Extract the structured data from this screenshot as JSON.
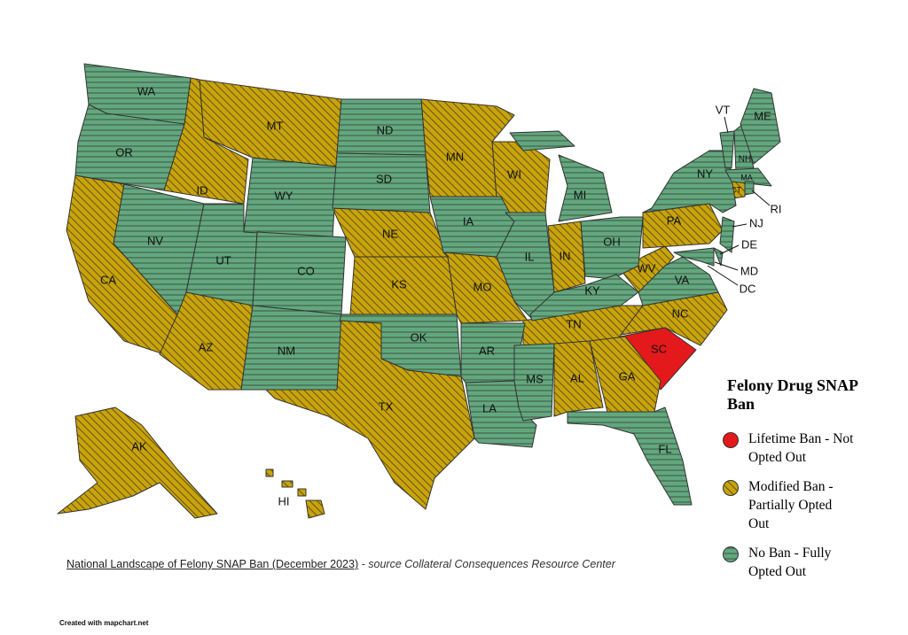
{
  "legend": {
    "title": "Felony Drug SNAP Ban",
    "items": [
      {
        "label": "Lifetime Ban - Not Opted Out",
        "color": "#e4191c",
        "hatch": "none",
        "states": [
          "SC"
        ]
      },
      {
        "label": "Modified Ban - Partially Opted Out",
        "color": "#c9a30a",
        "hatch": "diagonal",
        "states": [
          "MT",
          "ID",
          "CA",
          "AZ",
          "NE",
          "KS",
          "TX",
          "MN",
          "WI",
          "MO",
          "IN",
          "WV",
          "PA",
          "TN",
          "AL",
          "GA",
          "NC",
          "CT",
          "AK",
          "HI"
        ]
      },
      {
        "label": "No Ban - Fully Opted Out",
        "color": "#62a77f",
        "hatch": "horizontal",
        "states": [
          "WA",
          "OR",
          "NV",
          "UT",
          "WY",
          "CO",
          "NM",
          "ND",
          "SD",
          "OK",
          "IA",
          "AR",
          "LA",
          "MS",
          "IL",
          "MI",
          "OH",
          "KY",
          "VA",
          "NY",
          "NJ",
          "DE",
          "MD",
          "DC",
          "VT",
          "NH",
          "ME",
          "MA",
          "RI",
          "FL"
        ]
      }
    ]
  },
  "caption": {
    "title": "National Landscape of Felony SNAP Ban (December 2023)",
    "source": "- source Collateral Consequences Resource Center"
  },
  "credit": "Created with mapchart.net"
}
